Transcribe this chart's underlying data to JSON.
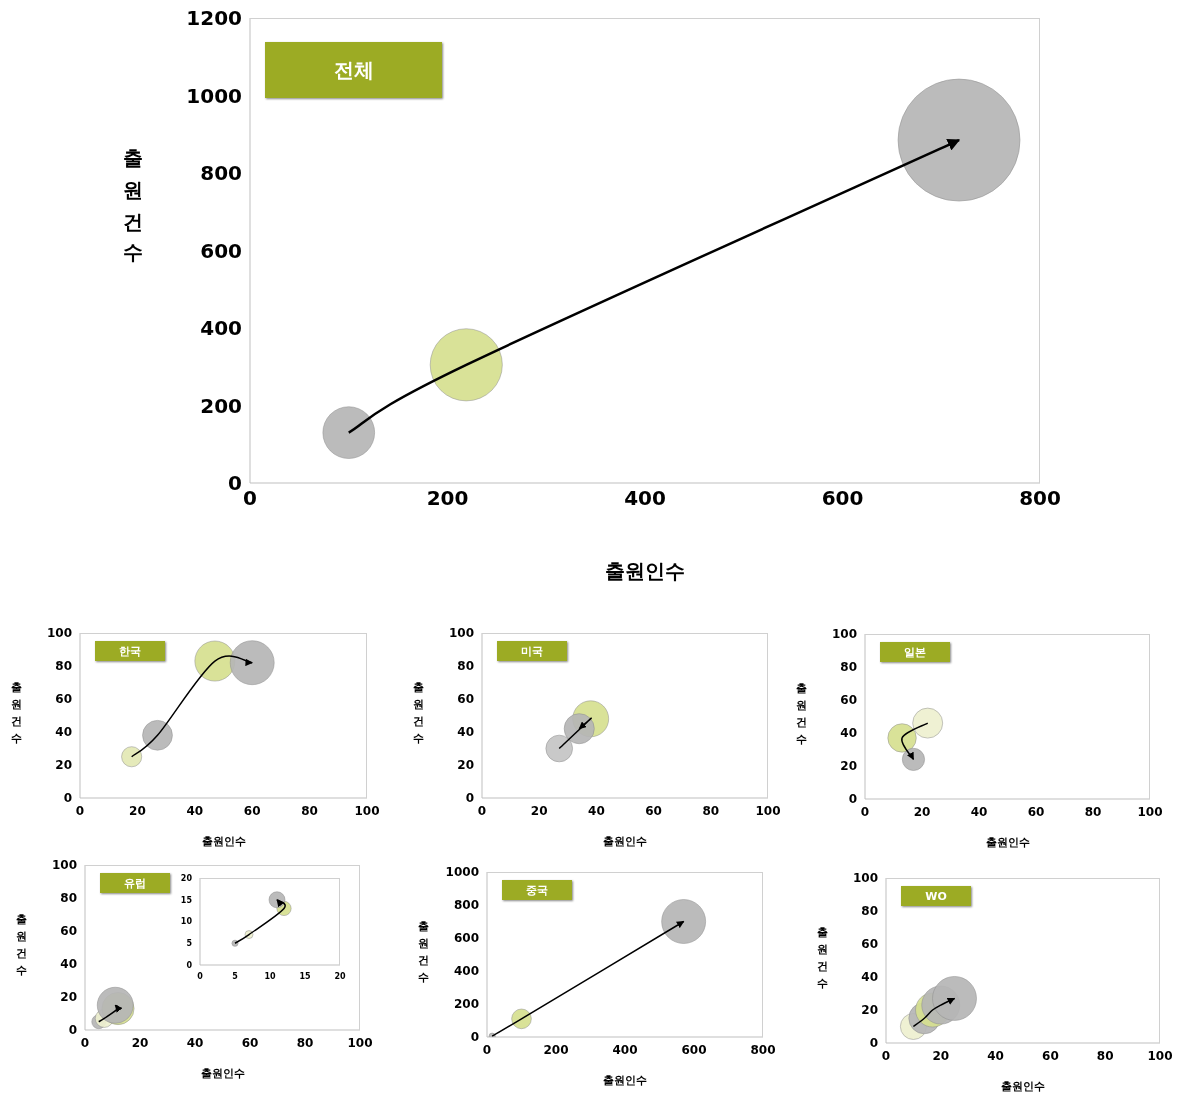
{
  "chart_data": [
    {
      "type": "bubble",
      "title": "전체",
      "xlabel": "출원인수",
      "ylabel": "출원건수",
      "x": [
        100,
        219,
        718
      ],
      "values": [
        130,
        305,
        885
      ],
      "sizes": [
        0.18,
        0.35,
        1
      ],
      "colors": [
        "#b5b5b5",
        "#d6df8f",
        "#b5b5b5"
      ],
      "xlim": [
        0,
        800
      ],
      "ylim": [
        0,
        1200
      ],
      "xticks": [
        0,
        200,
        400,
        600,
        800
      ],
      "yticks": [
        0,
        200,
        400,
        600,
        800,
        1000,
        1200
      ]
    },
    {
      "type": "bubble",
      "title": "한국",
      "xlabel": "출원인수",
      "ylabel": "출원건수",
      "x": [
        18,
        27,
        47,
        60
      ],
      "values": [
        25,
        38,
        83,
        82
      ],
      "sizes": [
        0.21,
        0.46,
        0.83,
        1
      ],
      "colors": [
        "#e3e8b4",
        "#b5b5b5",
        "#d6df8f",
        "#b5b5b5"
      ],
      "xlim": [
        0,
        100
      ],
      "ylim": [
        0,
        100
      ],
      "xticks": [
        0,
        20,
        40,
        60,
        80,
        100
      ],
      "yticks": [
        0,
        20,
        40,
        60,
        80,
        100
      ]
    },
    {
      "type": "bubble",
      "title": "미국",
      "xlabel": "출원인수",
      "ylabel": "출원건수",
      "x": [
        27,
        38,
        34
      ],
      "values": [
        30,
        48,
        42
      ],
      "sizes": [
        0.55,
        1,
        0.7
      ],
      "colors": [
        "#c4c4c4",
        "#d6df8f",
        "#b5b5b5"
      ],
      "xlim": [
        0,
        100
      ],
      "ylim": [
        0,
        100
      ],
      "xticks": [
        0,
        20,
        40,
        60,
        80,
        100
      ],
      "yticks": [
        0,
        20,
        40,
        60,
        80,
        100
      ]
    },
    {
      "type": "bubble",
      "title": "일본",
      "xlabel": "출원인수",
      "ylabel": "출원건수",
      "x": [
        22,
        13,
        17
      ],
      "values": [
        46,
        37,
        24
      ],
      "sizes": [
        1,
        0.9,
        0.55
      ],
      "colors": [
        "#eef0cf",
        "#d6df8f",
        "#b5b5b5"
      ],
      "xlim": [
        0,
        100
      ],
      "ylim": [
        0,
        100
      ],
      "xticks": [
        0,
        20,
        40,
        60,
        80,
        100
      ],
      "yticks": [
        0,
        20,
        40,
        60,
        80,
        100
      ]
    },
    {
      "type": "bubble",
      "title": "유럽",
      "xlabel": "출원인수",
      "ylabel": "출원건수",
      "x": [
        5,
        7,
        12,
        11
      ],
      "values": [
        5,
        7,
        13,
        15
      ],
      "sizes": [
        0.15,
        0.25,
        0.8,
        1
      ],
      "colors": [
        "#b5b5b5",
        "#eef0cf",
        "#d6df8f",
        "#b5b5b5"
      ],
      "xlim": [
        0,
        100
      ],
      "ylim": [
        0,
        100
      ],
      "xticks": [
        0,
        20,
        40,
        60,
        80,
        100
      ],
      "yticks": [
        0,
        20,
        40,
        60,
        80,
        100
      ]
    },
    {
      "type": "bubble",
      "x": [
        5,
        7,
        12,
        11
      ],
      "values": [
        5,
        7,
        13,
        15
      ],
      "sizes": [
        0.15,
        0.25,
        0.8,
        1
      ],
      "colors": [
        "#b5b5b5",
        "#eef0cf",
        "#d6df8f",
        "#b5b5b5"
      ],
      "xlim": [
        0,
        20
      ],
      "ylim": [
        0,
        20
      ],
      "xticks": [
        0,
        5,
        10,
        15,
        20
      ],
      "yticks": [
        0,
        5,
        10,
        15,
        20
      ]
    },
    {
      "type": "bubble",
      "title": "중국",
      "xlabel": "출원인수",
      "ylabel": "출원건수",
      "x": [
        15,
        100,
        570
      ],
      "values": [
        5,
        110,
        700
      ],
      "sizes": [
        0.02,
        0.2,
        1
      ],
      "colors": [
        "#b5b5b5",
        "#d6df8f",
        "#b5b5b5"
      ],
      "xlim": [
        0,
        800
      ],
      "ylim": [
        0,
        1000
      ],
      "xticks": [
        0,
        200,
        400,
        600,
        800
      ],
      "yticks": [
        0,
        200,
        400,
        600,
        800,
        1000
      ]
    },
    {
      "type": "bubble",
      "title": "WO",
      "xlabel": "출원인수",
      "ylabel": "출원건수",
      "x": [
        10,
        14,
        17,
        20,
        25
      ],
      "values": [
        10,
        15,
        20,
        23,
        27
      ],
      "sizes": [
        0.35,
        0.5,
        0.6,
        0.75,
        1
      ],
      "colors": [
        "#eef0cf",
        "#b5b5b5",
        "#d6df8f",
        "#b5b5b5",
        "#b5b5b5"
      ],
      "xlim": [
        0,
        100
      ],
      "ylim": [
        0,
        100
      ],
      "xticks": [
        0,
        20,
        40,
        60,
        80,
        100
      ],
      "yticks": [
        0,
        20,
        40,
        60,
        80,
        100
      ]
    }
  ]
}
